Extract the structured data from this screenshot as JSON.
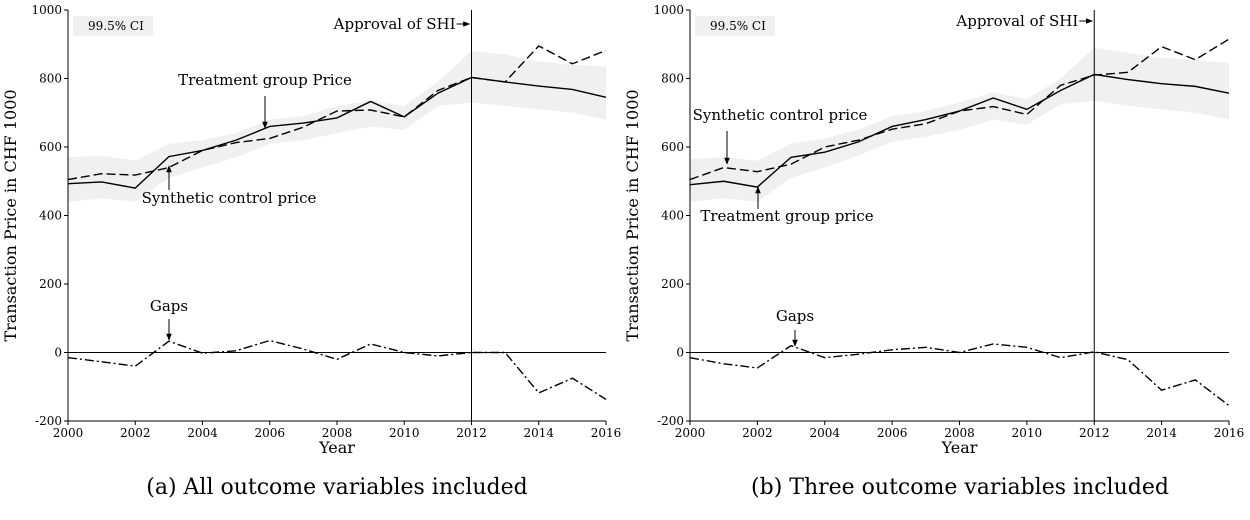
{
  "chart_data": [
    {
      "type": "line",
      "caption": "(a) All outcome variables included",
      "ylabel": "Transaction Price in CHF 1000",
      "xlabel": "Year",
      "x": [
        2000,
        2001,
        2002,
        2003,
        2004,
        2005,
        2006,
        2007,
        2008,
        2009,
        2010,
        2011,
        2012,
        2013,
        2014,
        2015,
        2016
      ],
      "xlim": [
        2000,
        2016
      ],
      "xticks": [
        2000,
        2002,
        2004,
        2006,
        2008,
        2010,
        2012,
        2014,
        2016
      ],
      "ylim": [
        -200,
        1000
      ],
      "yticks": [
        -200,
        0,
        200,
        400,
        600,
        800,
        1000
      ],
      "vline": {
        "x": 2012,
        "label": "Approval of SHI"
      },
      "band": {
        "name": "99.5% CI",
        "color": "#f0f0f0",
        "lower": [
          440,
          450,
          440,
          510,
          540,
          570,
          610,
          620,
          640,
          660,
          650,
          720,
          730,
          720,
          710,
          700,
          680
        ],
        "upper": [
          570,
          575,
          560,
          610,
          620,
          640,
          680,
          690,
          720,
          735,
          720,
          790,
          880,
          870,
          850,
          840,
          835
        ]
      },
      "series": [
        {
          "name": "Treatment group Price",
          "color": "#000",
          "style": "solid",
          "values": [
            493,
            498,
            480,
            572,
            590,
            620,
            660,
            670,
            685,
            733,
            688,
            757,
            803,
            790,
            778,
            768,
            745
          ]
        },
        {
          "name": "Synthetic control price",
          "color": "#000",
          "style": "dashed",
          "values": [
            505,
            522,
            518,
            540,
            590,
            613,
            625,
            658,
            705,
            708,
            688,
            765,
            803,
            790,
            895,
            843,
            882
          ]
        },
        {
          "name": "Gaps",
          "color": "#000",
          "style": "dashdot",
          "values": [
            -15,
            -27,
            -40,
            33,
            -2,
            5,
            35,
            10,
            -20,
            25,
            0,
            -10,
            0,
            0,
            -118,
            -75,
            -137
          ]
        }
      ]
    },
    {
      "type": "line",
      "caption": "(b) Three outcome variables included",
      "ylabel": "Transaction Price in CHF 1000",
      "xlabel": "Year",
      "x": [
        2000,
        2001,
        2002,
        2003,
        2004,
        2005,
        2006,
        2007,
        2008,
        2009,
        2010,
        2011,
        2012,
        2013,
        2014,
        2015,
        2016
      ],
      "xlim": [
        2000,
        2016
      ],
      "xticks": [
        2000,
        2002,
        2004,
        2006,
        2008,
        2010,
        2012,
        2014,
        2016
      ],
      "ylim": [
        -200,
        1000
      ],
      "yticks": [
        -200,
        0,
        200,
        400,
        600,
        800,
        1000
      ],
      "vline": {
        "x": 2012,
        "label": "Approval of SHI"
      },
      "band": {
        "name": "99.5% CI",
        "color": "#f0f0f0",
        "lower": [
          440,
          450,
          440,
          510,
          540,
          575,
          615,
          630,
          650,
          680,
          665,
          725,
          735,
          720,
          710,
          700,
          680
        ],
        "upper": [
          565,
          570,
          560,
          610,
          625,
          650,
          690,
          705,
          730,
          760,
          740,
          800,
          890,
          875,
          860,
          855,
          845
        ]
      },
      "series": [
        {
          "name": "Treatment group price",
          "color": "#000",
          "style": "solid",
          "values": [
            490,
            500,
            483,
            570,
            585,
            615,
            660,
            680,
            705,
            743,
            710,
            765,
            812,
            797,
            785,
            777,
            757
          ]
        },
        {
          "name": "Synthetic control price",
          "color": "#000",
          "style": "dashed",
          "values": [
            505,
            540,
            528,
            550,
            600,
            620,
            652,
            668,
            705,
            718,
            695,
            780,
            810,
            818,
            893,
            855,
            915
          ]
        },
        {
          "name": "Gaps",
          "color": "#000",
          "style": "dashdot",
          "values": [
            -15,
            -33,
            -45,
            20,
            -15,
            -5,
            8,
            15,
            0,
            25,
            15,
            -15,
            2,
            -21,
            -110,
            -80,
            -155
          ]
        }
      ]
    }
  ]
}
